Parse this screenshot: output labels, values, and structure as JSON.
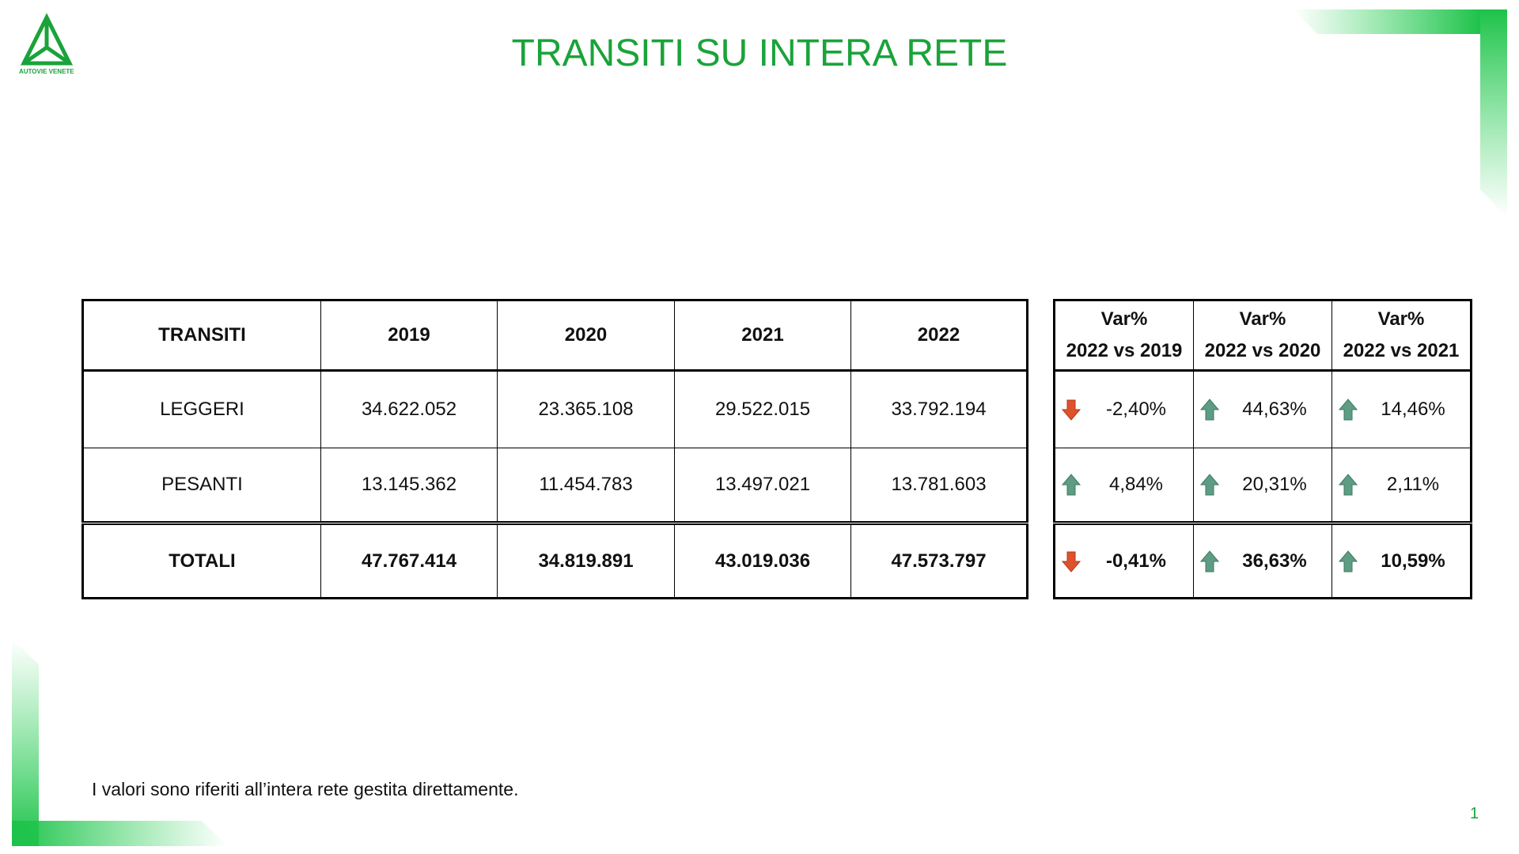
{
  "logo": {
    "text": "AUTOVIE VENETE"
  },
  "header": {
    "title": "TRANSITI SU INTERA RETE"
  },
  "table": {
    "columns": [
      "TRANSITI",
      "2019",
      "2020",
      "2021",
      "2022"
    ],
    "rows": [
      [
        "LEGGERI",
        "34.622.052",
        "23.365.108",
        "29.522.015",
        "33.792.194"
      ],
      [
        "PESANTI",
        "13.145.362",
        "11.454.783",
        "13.497.021",
        "13.781.603"
      ],
      [
        "TOTALI",
        "47.767.414",
        "34.819.891",
        "43.019.036",
        "47.573.797"
      ]
    ]
  },
  "variation_table": {
    "columns": [
      [
        "Var%",
        "2022 vs 2019"
      ],
      [
        "Var%",
        "2022 vs 2020"
      ],
      [
        "Var%",
        "2022 vs 2021"
      ]
    ],
    "rows": [
      [
        "-2,40%",
        "44,63%",
        "14,46%"
      ],
      [
        "4,84%",
        "20,31%",
        "2,11%"
      ],
      [
        "-0,41%",
        "36,63%",
        "10,59%"
      ]
    ]
  },
  "footnote": "I valori sono riferiti all’intera rete gestita direttamente.",
  "page_number": "1"
}
